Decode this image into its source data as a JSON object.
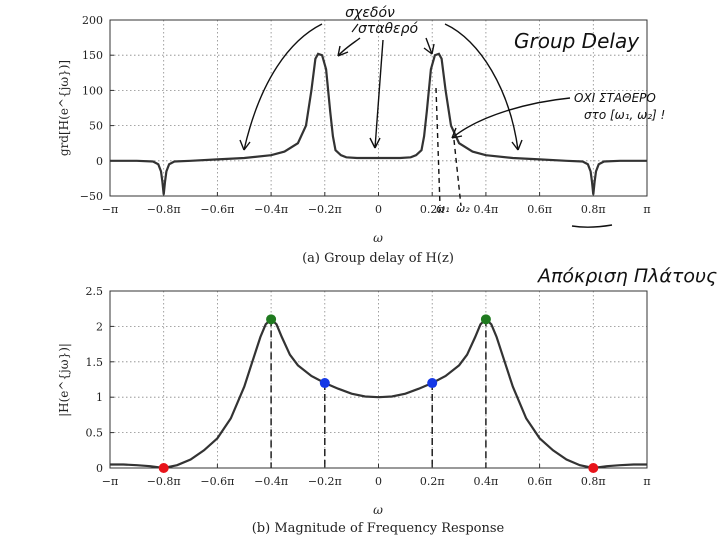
{
  "chart_data": [
    {
      "type": "line",
      "caption": "(a) Group delay of H(z)",
      "xlabel": "ω",
      "ylabel": "grd[H(e^{jω})]",
      "xlim": [
        -3.1416,
        3.1416
      ],
      "ylim": [
        -50,
        200
      ],
      "grid": "dotted",
      "xtick_labels": [
        "−π",
        "−0.8π",
        "−0.6π",
        "−0.4π",
        "−0.2π",
        "0",
        "0.2π",
        "0.4π",
        "0.6π",
        "0.8π",
        "π"
      ],
      "ytick_labels": [
        "−50",
        "0",
        "50",
        "100",
        "150",
        "200"
      ],
      "ytick_values": [
        -50,
        0,
        50,
        100,
        150,
        200
      ],
      "series": [
        {
          "x_over_pi": [
            -1.0,
            -0.9,
            -0.84,
            -0.82,
            -0.81,
            -0.805,
            -0.8,
            -0.795,
            -0.79,
            -0.78,
            -0.76,
            -0.7,
            -0.6,
            -0.5,
            -0.4,
            -0.35,
            -0.3,
            -0.27,
            -0.25,
            -0.235,
            -0.225,
            -0.21,
            -0.195,
            -0.18,
            -0.17,
            -0.16,
            -0.14,
            -0.12,
            -0.08,
            0,
            0.08,
            0.12,
            0.14,
            0.16,
            0.17,
            0.18,
            0.195,
            0.21,
            0.225,
            0.235,
            0.25,
            0.27,
            0.3,
            0.35,
            0.4,
            0.5,
            0.6,
            0.7,
            0.76,
            0.78,
            0.79,
            0.795,
            0.8,
            0.805,
            0.81,
            0.82,
            0.84,
            0.9,
            1.0
          ],
          "y": [
            0,
            0,
            -1,
            -5,
            -15,
            -30,
            -48,
            -30,
            -15,
            -5,
            -1,
            0,
            2,
            4,
            8,
            13,
            25,
            50,
            100,
            145,
            152,
            150,
            130,
            70,
            35,
            15,
            8,
            5,
            4,
            4,
            4,
            5,
            8,
            15,
            35,
            70,
            130,
            150,
            152,
            145,
            100,
            50,
            25,
            13,
            8,
            4,
            2,
            0,
            -1,
            -5,
            -15,
            -30,
            -48,
            -30,
            -15,
            -5,
            -1,
            0,
            0
          ]
        }
      ],
      "annotations": [
        {
          "text": "σχεδόν",
          "line2": "σταθερό"
        },
        {
          "text": "Group Delay"
        },
        {
          "text": "ΟΧΙ ΣΤΑΘΕΡΟ",
          "line2": "στο [ω₁, ω₂] !"
        },
        {
          "text": "ω₁"
        },
        {
          "text": "ω₂"
        }
      ]
    },
    {
      "type": "line",
      "caption": "(b) Magnitude of Frequency Response",
      "xlabel": "ω",
      "ylabel": "|H(e^{jω})|",
      "xlim": [
        -3.1416,
        3.1416
      ],
      "ylim": [
        0,
        2.5
      ],
      "grid": "dotted",
      "xtick_labels": [
        "−π",
        "−0.8π",
        "−0.6π",
        "−0.4π",
        "−0.2π",
        "0",
        "0.2π",
        "0.4π",
        "0.6π",
        "0.8π",
        "π"
      ],
      "ytick_labels": [
        "0",
        "0.5",
        "1",
        "1.5",
        "2",
        "2.5"
      ],
      "ytick_values": [
        0,
        0.5,
        1,
        1.5,
        2,
        2.5
      ],
      "series": [
        {
          "x_over_pi": [
            -1.0,
            -0.95,
            -0.9,
            -0.85,
            -0.8,
            -0.75,
            -0.7,
            -0.65,
            -0.6,
            -0.55,
            -0.5,
            -0.47,
            -0.44,
            -0.42,
            -0.4,
            -0.38,
            -0.36,
            -0.33,
            -0.3,
            -0.25,
            -0.2,
            -0.15,
            -0.1,
            -0.05,
            0,
            0.05,
            0.1,
            0.15,
            0.2,
            0.25,
            0.3,
            0.33,
            0.36,
            0.38,
            0.4,
            0.42,
            0.44,
            0.47,
            0.5,
            0.55,
            0.6,
            0.65,
            0.7,
            0.75,
            0.8,
            0.85,
            0.9,
            0.95,
            1.0
          ],
          "y": [
            0.05,
            0.05,
            0.04,
            0.025,
            0.0,
            0.04,
            0.12,
            0.25,
            0.42,
            0.7,
            1.15,
            1.5,
            1.85,
            2.03,
            2.1,
            2.03,
            1.85,
            1.6,
            1.45,
            1.3,
            1.2,
            1.12,
            1.05,
            1.01,
            1.0,
            1.01,
            1.05,
            1.12,
            1.2,
            1.3,
            1.45,
            1.6,
            1.85,
            2.03,
            2.1,
            2.03,
            1.85,
            1.5,
            1.15,
            0.7,
            0.42,
            0.25,
            0.12,
            0.04,
            0.0,
            0.025,
            0.04,
            0.05,
            0.05
          ]
        }
      ],
      "markers": [
        {
          "x_over_pi": -0.8,
          "y": 0.0,
          "color": "#e8141b"
        },
        {
          "x_over_pi": 0.8,
          "y": 0.0,
          "color": "#e8141b"
        },
        {
          "x_over_pi": -0.4,
          "y": 2.1,
          "color": "#1f7a1f"
        },
        {
          "x_over_pi": 0.4,
          "y": 2.1,
          "color": "#1f7a1f"
        },
        {
          "x_over_pi": -0.2,
          "y": 1.2,
          "color": "#1538e6"
        },
        {
          "x_over_pi": 0.2,
          "y": 1.2,
          "color": "#1538e6"
        }
      ],
      "annotations": [
        {
          "text": "Απόκριση Πλάτους"
        }
      ]
    }
  ]
}
